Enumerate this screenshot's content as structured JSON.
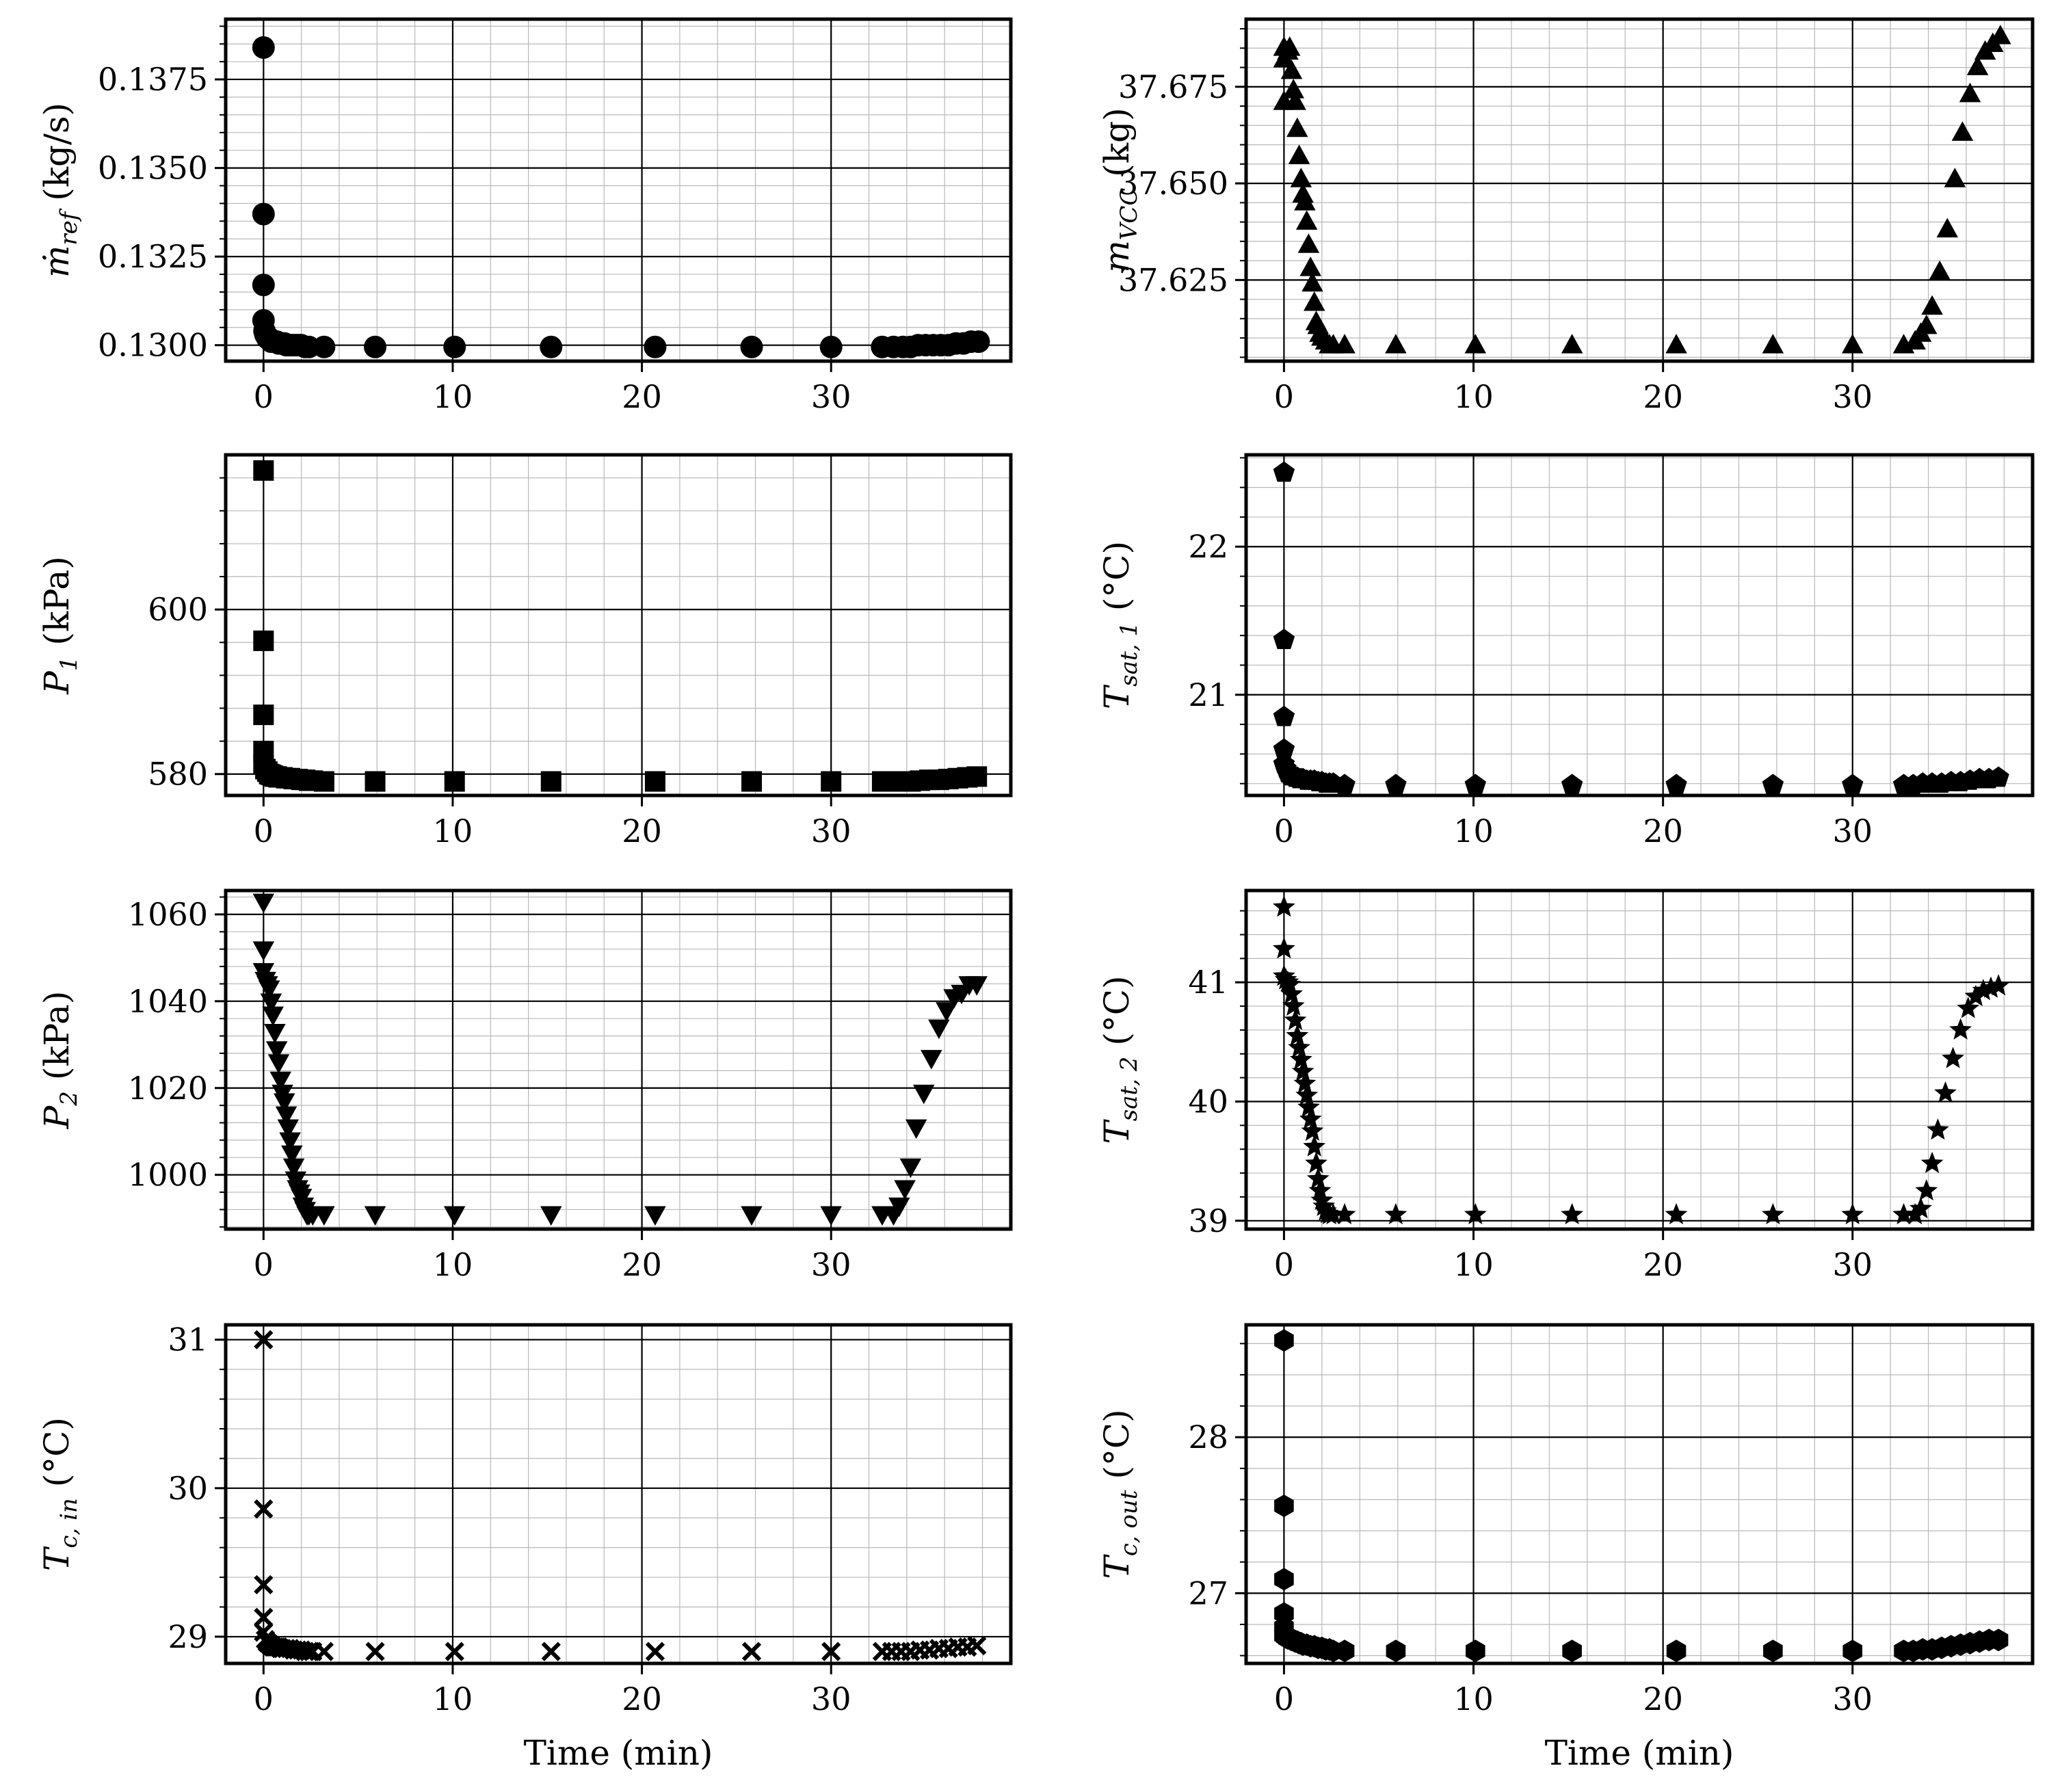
{
  "chart_data": [
    {
      "type": "scatter",
      "marker": "circle",
      "ylabel": {
        "base": "ṁ",
        "sub": "ref",
        "unit": " (kg/s)"
      },
      "xlabel": "",
      "xlim": [
        -2,
        39.5
      ],
      "ylim": [
        0.12955,
        0.1392
      ],
      "xticks": [
        0,
        10,
        20,
        30
      ],
      "yticks": [
        0.13,
        0.1325,
        0.135,
        0.1375
      ],
      "ytick_labels": [
        "0.1300",
        "0.1325",
        "0.1350",
        "0.1375"
      ],
      "grid": true,
      "x": [
        0,
        0,
        0,
        0,
        0.05,
        0.1,
        0.2,
        0.3,
        0.4,
        0.5,
        0.6,
        0.7,
        0.8,
        0.9,
        1.0,
        1.1,
        1.2,
        1.3,
        1.4,
        1.5,
        1.6,
        1.7,
        1.8,
        1.9,
        2.0,
        2.2,
        2.4,
        3.2,
        5.9,
        10.1,
        15.2,
        20.7,
        25.8,
        30.0,
        32.7,
        33.3,
        33.8,
        34.2,
        34.6,
        35.0,
        35.4,
        35.8,
        36.2,
        36.6,
        37.0,
        37.4,
        37.8
      ],
      "y": [
        0.1384,
        0.1337,
        0.1317,
        0.1307,
        0.1304,
        0.1303,
        0.1302,
        0.1302,
        0.1301,
        0.1301,
        0.1301,
        0.1301,
        0.13005,
        0.13005,
        0.13005,
        0.13005,
        0.13,
        0.13,
        0.13,
        0.13,
        0.13,
        0.13,
        0.13,
        0.13,
        0.13,
        0.12995,
        0.12995,
        0.12995,
        0.12995,
        0.12995,
        0.12995,
        0.12995,
        0.12995,
        0.12995,
        0.12995,
        0.12995,
        0.12995,
        0.12995,
        0.13,
        0.13,
        0.13,
        0.13,
        0.13,
        0.13005,
        0.13005,
        0.1301,
        0.1301
      ]
    },
    {
      "type": "scatter",
      "marker": "triangle-up",
      "ylabel": {
        "base": "m",
        "sub": "VCC",
        "unit": " (kg)"
      },
      "xlabel": "",
      "xlim": [
        -2,
        39.5
      ],
      "ylim": [
        37.604,
        37.6925
      ],
      "xticks": [
        0,
        10,
        20,
        30
      ],
      "yticks": [
        37.625,
        37.65,
        37.675
      ],
      "ytick_labels": [
        "37.625",
        "37.650",
        "37.675"
      ],
      "grid": true,
      "x": [
        0,
        0,
        0,
        0.2,
        0.3,
        0.4,
        0.5,
        0.6,
        0.7,
        0.8,
        0.9,
        1.0,
        1.1,
        1.2,
        1.3,
        1.4,
        1.5,
        1.6,
        1.7,
        1.8,
        1.9,
        2.0,
        2.2,
        2.4,
        2.6,
        3.2,
        5.9,
        10.1,
        15.2,
        20.7,
        25.8,
        30.0,
        32.7,
        33.3,
        33.6,
        33.9,
        34.2,
        34.6,
        35.0,
        35.4,
        35.8,
        36.2,
        36.6,
        37.0,
        37.4,
        37.8
      ],
      "y": [
        37.685,
        37.682,
        37.671,
        37.684,
        37.685,
        37.679,
        37.674,
        37.671,
        37.664,
        37.657,
        37.651,
        37.647,
        37.645,
        37.64,
        37.634,
        37.628,
        37.624,
        37.619,
        37.614,
        37.613,
        37.611,
        37.61,
        37.609,
        37.608,
        37.608,
        37.608,
        37.608,
        37.608,
        37.608,
        37.608,
        37.608,
        37.608,
        37.608,
        37.609,
        37.611,
        37.613,
        37.618,
        37.627,
        37.638,
        37.651,
        37.663,
        37.673,
        37.68,
        37.684,
        37.686,
        37.688
      ]
    },
    {
      "type": "scatter",
      "marker": "square",
      "ylabel": {
        "base": "P",
        "sub": "1",
        "unit": " (kPa)"
      },
      "xlabel": "",
      "xlim": [
        -2,
        39.5
      ],
      "ylim": [
        577.4,
        618.8
      ],
      "xticks": [
        0,
        10,
        20,
        30
      ],
      "yticks": [
        580,
        600
      ],
      "ytick_labels": [
        "580",
        "600"
      ],
      "grid": true,
      "x": [
        0,
        0,
        0,
        0,
        0,
        0.1,
        0.2,
        0.3,
        0.4,
        0.5,
        0.6,
        0.7,
        0.8,
        0.9,
        1.0,
        1.2,
        1.4,
        1.6,
        1.8,
        2.0,
        2.2,
        2.4,
        2.6,
        3.2,
        5.9,
        10.1,
        15.2,
        20.7,
        25.8,
        30.0,
        32.7,
        33.2,
        33.7,
        34.2,
        34.7,
        35.2,
        35.7,
        36.2,
        36.7,
        37.2,
        37.7
      ],
      "y": [
        616.9,
        596.2,
        587.2,
        582.8,
        581.2,
        580.6,
        580.3,
        580.0,
        579.9,
        579.8,
        579.7,
        579.7,
        579.6,
        579.6,
        579.6,
        579.5,
        579.5,
        579.4,
        579.4,
        579.3,
        579.3,
        579.2,
        579.2,
        579.1,
        579.1,
        579.1,
        579.1,
        579.1,
        579.1,
        579.1,
        579.1,
        579.1,
        579.1,
        579.1,
        579.2,
        579.3,
        579.3,
        579.4,
        579.5,
        579.6,
        579.7
      ]
    },
    {
      "type": "scatter",
      "marker": "pentagon",
      "ylabel": {
        "base": "T",
        "sub": "sat, 1",
        "unit": " (°C)"
      },
      "xlabel": "",
      "xlim": [
        -2,
        39.5
      ],
      "ylim": [
        20.32,
        22.62
      ],
      "xticks": [
        0,
        10,
        20,
        30
      ],
      "yticks": [
        21,
        22
      ],
      "ytick_labels": [
        "21",
        "22"
      ],
      "grid": true,
      "x": [
        0,
        0,
        0,
        0,
        0,
        0.1,
        0.2,
        0.3,
        0.4,
        0.5,
        0.6,
        0.7,
        0.8,
        0.9,
        1.0,
        1.2,
        1.4,
        1.6,
        1.8,
        2.0,
        2.2,
        2.4,
        2.6,
        3.2,
        5.9,
        10.1,
        15.2,
        20.7,
        25.8,
        30.0,
        32.7,
        33.2,
        33.7,
        34.2,
        34.7,
        35.2,
        35.7,
        36.2,
        36.7,
        37.2,
        37.7
      ],
      "y": [
        22.5,
        21.37,
        20.85,
        20.63,
        20.53,
        20.5,
        20.47,
        20.46,
        20.45,
        20.45,
        20.44,
        20.44,
        20.43,
        20.43,
        20.43,
        20.42,
        20.42,
        20.42,
        20.41,
        20.41,
        20.4,
        20.4,
        20.4,
        20.39,
        20.39,
        20.39,
        20.39,
        20.39,
        20.39,
        20.39,
        20.39,
        20.39,
        20.4,
        20.4,
        20.4,
        20.41,
        20.41,
        20.42,
        20.43,
        20.43,
        20.44
      ]
    },
    {
      "type": "scatter",
      "marker": "triangle-down",
      "ylabel": {
        "base": "P",
        "sub": "2",
        "unit": " (kPa)"
      },
      "xlabel": "",
      "xlim": [
        -2,
        39.5
      ],
      "ylim": [
        987.5,
        1065.5
      ],
      "xticks": [
        0,
        10,
        20,
        30
      ],
      "yticks": [
        1000,
        1020,
        1040,
        1060
      ],
      "ytick_labels": [
        "1000",
        "1020",
        "1040",
        "1060"
      ],
      "grid": true,
      "x": [
        0,
        0,
        0,
        0.1,
        0.2,
        0.3,
        0.4,
        0.5,
        0.6,
        0.7,
        0.8,
        0.9,
        1.0,
        1.1,
        1.2,
        1.3,
        1.4,
        1.5,
        1.6,
        1.7,
        1.8,
        1.9,
        2.0,
        2.1,
        2.2,
        2.3,
        2.4,
        2.6,
        3.2,
        5.9,
        10.1,
        15.2,
        20.7,
        25.8,
        30.0,
        32.7,
        33.3,
        33.6,
        33.9,
        34.2,
        34.5,
        34.9,
        35.3,
        35.7,
        36.1,
        36.5,
        36.9,
        37.3,
        37.7
      ],
      "y": [
        1063,
        1052,
        1047,
        1045,
        1044,
        1043,
        1040,
        1037,
        1033,
        1029,
        1026,
        1022,
        1019,
        1017,
        1014,
        1011,
        1008,
        1005,
        1002,
        999,
        997,
        996,
        995,
        993,
        992,
        991,
        991,
        991,
        991,
        991,
        991,
        991,
        991,
        991,
        991,
        991,
        991,
        993,
        997,
        1002,
        1011,
        1019,
        1027,
        1034,
        1038,
        1041,
        1042,
        1044,
        1044
      ]
    },
    {
      "type": "scatter",
      "marker": "star",
      "ylabel": {
        "base": "T",
        "sub": "sat, 2",
        "unit": " (°C)"
      },
      "xlabel": "",
      "xlim": [
        -2,
        39.5
      ],
      "ylim": [
        38.93,
        41.77
      ],
      "xticks": [
        0,
        10,
        20,
        30
      ],
      "yticks": [
        39,
        40,
        41
      ],
      "ytick_labels": [
        "39",
        "40",
        "41"
      ],
      "grid": true,
      "x": [
        0,
        0,
        0,
        0.1,
        0.2,
        0.3,
        0.4,
        0.5,
        0.6,
        0.7,
        0.8,
        0.9,
        1.0,
        1.1,
        1.2,
        1.3,
        1.4,
        1.5,
        1.6,
        1.7,
        1.8,
        1.9,
        2.0,
        2.1,
        2.2,
        2.3,
        2.4,
        2.6,
        3.2,
        5.9,
        10.1,
        15.2,
        20.7,
        25.8,
        30.0,
        32.7,
        33.3,
        33.6,
        33.9,
        34.2,
        34.5,
        34.9,
        35.3,
        35.7,
        36.1,
        36.5,
        36.9,
        37.3,
        37.7
      ],
      "y": [
        41.63,
        41.28,
        41.05,
        41.02,
        41.0,
        40.98,
        40.9,
        40.8,
        40.68,
        40.55,
        40.45,
        40.35,
        40.25,
        40.15,
        40.05,
        39.95,
        39.85,
        39.75,
        39.62,
        39.48,
        39.35,
        39.25,
        39.17,
        39.12,
        39.08,
        39.06,
        39.05,
        39.05,
        39.05,
        39.05,
        39.05,
        39.05,
        39.05,
        39.05,
        39.05,
        39.05,
        39.05,
        39.1,
        39.25,
        39.48,
        39.76,
        40.07,
        40.36,
        40.6,
        40.78,
        40.88,
        40.93,
        40.95,
        40.97
      ]
    },
    {
      "type": "scatter",
      "marker": "x",
      "ylabel": {
        "base": "T",
        "sub": "c, in",
        "unit": " (°C)"
      },
      "xlabel": "Time (min)",
      "xlim": [
        -2,
        39.5
      ],
      "ylim": [
        28.82,
        31.1
      ],
      "xticks": [
        0,
        10,
        20,
        30
      ],
      "yticks": [
        29,
        30,
        31
      ],
      "ytick_labels": [
        "29",
        "30",
        "31"
      ],
      "grid": true,
      "x": [
        0,
        0,
        0,
        0,
        0,
        0.1,
        0.2,
        0.3,
        0.4,
        0.5,
        0.6,
        0.7,
        0.8,
        0.9,
        1.0,
        1.2,
        1.4,
        1.6,
        1.8,
        2.0,
        2.2,
        2.4,
        2.6,
        3.2,
        5.9,
        10.1,
        15.2,
        20.7,
        25.8,
        30.0,
        32.7,
        33.2,
        33.7,
        34.2,
        34.7,
        35.2,
        35.7,
        36.2,
        36.7,
        37.2,
        37.7
      ],
      "y": [
        31.0,
        29.86,
        29.35,
        29.13,
        29.03,
        28.98,
        28.96,
        28.95,
        28.94,
        28.93,
        28.93,
        28.93,
        28.93,
        28.92,
        28.92,
        28.92,
        28.92,
        28.91,
        28.91,
        28.91,
        28.9,
        28.9,
        28.9,
        28.9,
        28.9,
        28.9,
        28.9,
        28.9,
        28.9,
        28.9,
        28.9,
        28.9,
        28.9,
        28.9,
        28.91,
        28.91,
        28.92,
        28.92,
        28.93,
        28.93,
        28.94
      ]
    },
    {
      "type": "scatter",
      "marker": "hexagon",
      "ylabel": {
        "base": "T",
        "sub": "c, out",
        "unit": " (°C)"
      },
      "xlabel": "Time (min)",
      "xlim": [
        -2,
        39.5
      ],
      "ylim": [
        26.55,
        28.72
      ],
      "xticks": [
        0,
        10,
        20,
        30
      ],
      "yticks": [
        27,
        28
      ],
      "ytick_labels": [
        "27",
        "28"
      ],
      "grid": true,
      "x": [
        0,
        0,
        0,
        0,
        0,
        0,
        0.1,
        0.2,
        0.3,
        0.4,
        0.5,
        0.6,
        0.7,
        0.8,
        0.9,
        1.0,
        1.2,
        1.4,
        1.6,
        1.8,
        2.0,
        2.2,
        2.4,
        2.6,
        3.2,
        5.9,
        10.1,
        15.2,
        20.7,
        25.8,
        30.0,
        32.7,
        33.2,
        33.7,
        34.2,
        34.7,
        35.2,
        35.7,
        36.2,
        36.7,
        37.2,
        37.7
      ],
      "y": [
        28.62,
        27.56,
        27.09,
        26.87,
        26.78,
        26.73,
        26.72,
        26.71,
        26.71,
        26.7,
        26.7,
        26.69,
        26.69,
        26.68,
        26.68,
        26.67,
        26.67,
        26.66,
        26.66,
        26.65,
        26.65,
        26.64,
        26.64,
        26.63,
        26.63,
        26.63,
        26.63,
        26.63,
        26.63,
        26.63,
        26.63,
        26.63,
        26.63,
        26.64,
        26.64,
        26.65,
        26.66,
        26.67,
        26.68,
        26.69,
        26.7,
        26.7
      ]
    }
  ]
}
